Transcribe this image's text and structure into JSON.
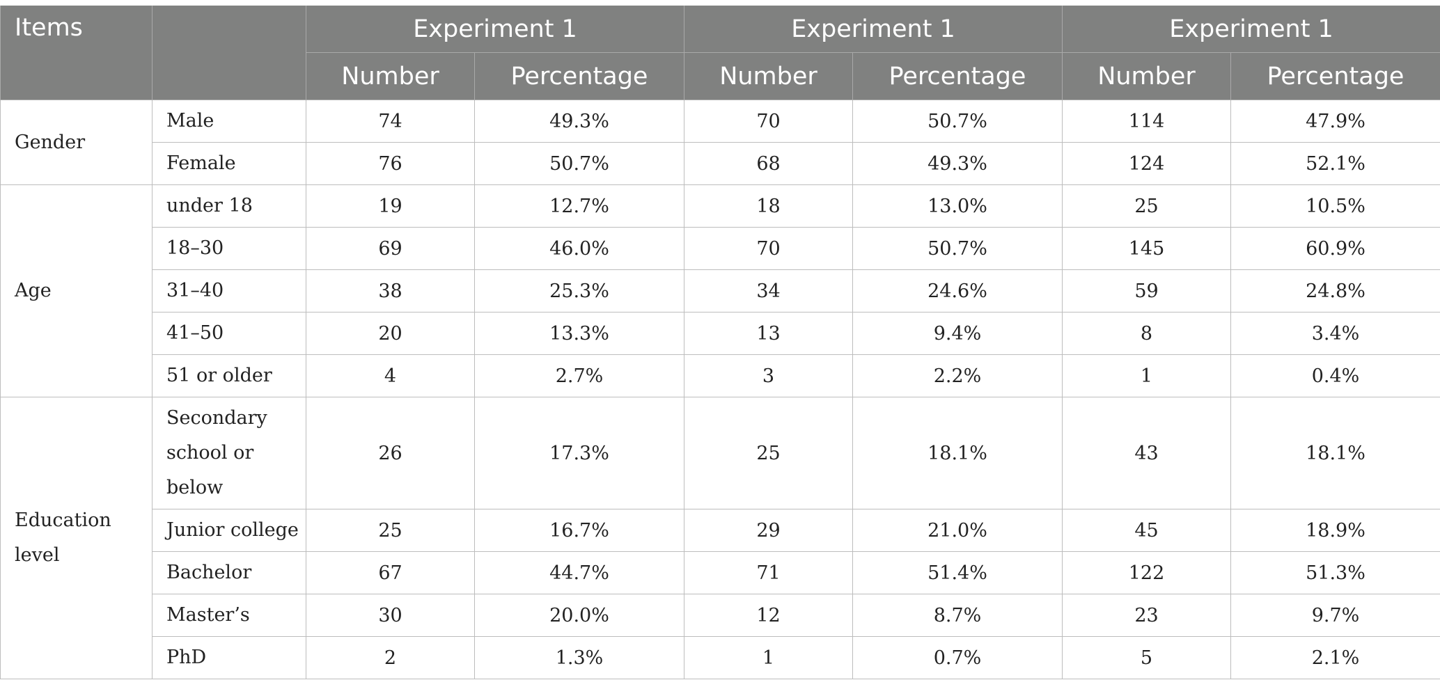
{
  "header": {
    "items_label": "Items",
    "groups": [
      "Experiment 1",
      "Experiment 1",
      "Experiment 1"
    ],
    "subheaders": [
      "Number",
      "Percentage",
      "Number",
      "Percentage",
      "Number",
      "Percentage"
    ]
  },
  "groups": [
    {
      "label": "Gender",
      "rows": [
        {
          "label": "Male",
          "values": [
            "74",
            "49.3%",
            "70",
            "50.7%",
            "114",
            "47.9%"
          ]
        },
        {
          "label": "Female",
          "values": [
            "76",
            "50.7%",
            "68",
            "49.3%",
            "124",
            "52.1%"
          ]
        }
      ]
    },
    {
      "label": "Age",
      "rows": [
        {
          "label": "under 18",
          "values": [
            "19",
            "12.7%",
            "18",
            "13.0%",
            "25",
            "10.5%"
          ]
        },
        {
          "label": "18–30",
          "values": [
            "69",
            "46.0%",
            "70",
            "50.7%",
            "145",
            "60.9%"
          ]
        },
        {
          "label": "31–40",
          "values": [
            "38",
            "25.3%",
            "34",
            "24.6%",
            "59",
            "24.8%"
          ]
        },
        {
          "label": "41–50",
          "values": [
            "20",
            "13.3%",
            "13",
            "9.4%",
            "8",
            "3.4%"
          ]
        },
        {
          "label": "51 or older",
          "values": [
            "4",
            "2.7%",
            "3",
            "2.2%",
            "1",
            "0.4%"
          ]
        }
      ]
    },
    {
      "label": "Education level",
      "rows": [
        {
          "label": "Secondary school or below",
          "values": [
            "26",
            "17.3%",
            "25",
            "18.1%",
            "43",
            "18.1%"
          ]
        },
        {
          "label": "Junior college",
          "values": [
            "25",
            "16.7%",
            "29",
            "21.0%",
            "45",
            "18.9%"
          ]
        },
        {
          "label": "Bachelor",
          "values": [
            "67",
            "44.7%",
            "71",
            "51.4%",
            "122",
            "51.3%"
          ]
        },
        {
          "label": "Master’s",
          "values": [
            "30",
            "20.0%",
            "12",
            "8.7%",
            "23",
            "9.7%"
          ]
        },
        {
          "label": "PhD",
          "values": [
            "2",
            "1.3%",
            "1",
            "0.7%",
            "5",
            "2.1%"
          ]
        }
      ]
    }
  ]
}
